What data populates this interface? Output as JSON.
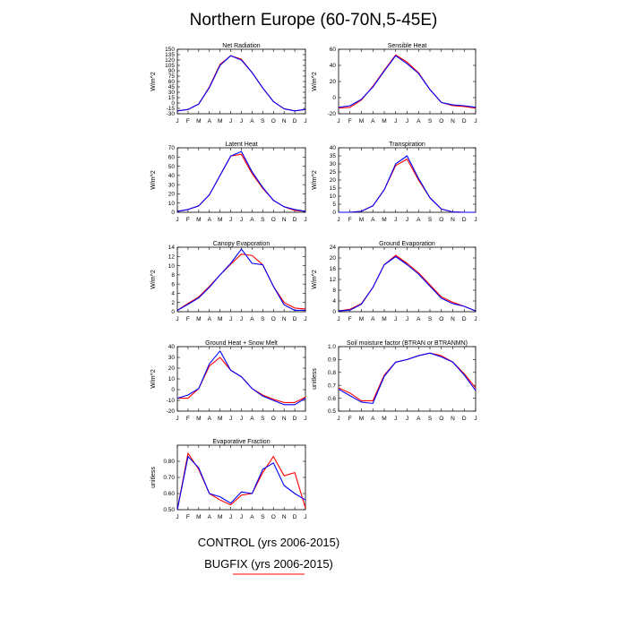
{
  "figure": {
    "title": "Northern Europe (60-70N,5-45E)",
    "legend": {
      "items": [
        {
          "label": "CONTROL (yrs 2006-2015)",
          "color": "#0000ff",
          "show_line": false
        },
        {
          "label": "BUGFIX (yrs 2006-2015)",
          "color": "#ff0000",
          "show_line": true
        }
      ]
    }
  },
  "chart_data": [
    {
      "type": "line",
      "title": "Net Radiation",
      "ylabel": "W/m^2",
      "categories": [
        "J",
        "F",
        "M",
        "A",
        "M",
        "J",
        "J",
        "A",
        "S",
        "O",
        "N",
        "D",
        "J"
      ],
      "ylim": [
        -30,
        150
      ],
      "yticks": [
        -30,
        -15,
        0,
        15,
        30,
        45,
        60,
        75,
        90,
        105,
        120,
        135,
        150
      ],
      "series": [
        {
          "color": "#ff0000",
          "values": [
            -22,
            -18,
            -3,
            45,
            108,
            132,
            122,
            85,
            42,
            4,
            -16,
            -22,
            -18
          ]
        },
        {
          "color": "#0000ff",
          "values": [
            -22,
            -18,
            -3,
            43,
            105,
            132,
            120,
            85,
            42,
            4,
            -16,
            -22,
            -18
          ]
        }
      ]
    },
    {
      "type": "line",
      "title": "Sensible Heat",
      "ylabel": "W/m^2",
      "categories": [
        "J",
        "F",
        "M",
        "A",
        "M",
        "J",
        "J",
        "A",
        "S",
        "O",
        "N",
        "D",
        "J"
      ],
      "ylim": [
        -20,
        60
      ],
      "yticks": [
        -20,
        0,
        20,
        40,
        60
      ],
      "series": [
        {
          "color": "#ff0000",
          "values": [
            -13,
            -12,
            -3,
            14,
            34,
            53,
            44,
            31,
            10,
            -6,
            -10,
            -11,
            -13
          ]
        },
        {
          "color": "#0000ff",
          "values": [
            -12,
            -10,
            -2,
            13,
            33,
            52,
            42,
            30,
            10,
            -6,
            -9,
            -10,
            -12
          ]
        }
      ]
    },
    {
      "type": "line",
      "title": "Latent Heat",
      "ylabel": "W/m^2",
      "categories": [
        "J",
        "F",
        "M",
        "A",
        "M",
        "J",
        "J",
        "A",
        "S",
        "O",
        "N",
        "D",
        "J"
      ],
      "ylim": [
        0,
        70
      ],
      "yticks": [
        0,
        10,
        20,
        30,
        40,
        50,
        60,
        70
      ],
      "series": [
        {
          "color": "#ff0000",
          "values": [
            1,
            3,
            7,
            19,
            40,
            61,
            63,
            42,
            26,
            13,
            6,
            2,
            1
          ]
        },
        {
          "color": "#0000ff",
          "values": [
            1,
            3,
            7,
            19,
            40,
            61,
            66,
            44,
            27,
            13,
            6,
            3,
            1
          ]
        }
      ]
    },
    {
      "type": "line",
      "title": "Transpiration",
      "ylabel": "W/m^2",
      "categories": [
        "J",
        "F",
        "M",
        "A",
        "M",
        "J",
        "J",
        "A",
        "S",
        "O",
        "N",
        "D",
        "J"
      ],
      "ylim": [
        0,
        40
      ],
      "yticks": [
        0,
        5,
        10,
        15,
        20,
        25,
        30,
        35,
        40
      ],
      "series": [
        {
          "color": "#ff0000",
          "values": [
            0,
            0,
            0.6,
            4,
            14,
            29,
            33,
            20,
            9,
            2,
            0.2,
            0,
            0
          ]
        },
        {
          "color": "#0000ff",
          "values": [
            0,
            0,
            0.6,
            4,
            14,
            30,
            35,
            21,
            9,
            2,
            0.2,
            0,
            0
          ]
        }
      ]
    },
    {
      "type": "line",
      "title": "Canopy Evaporation",
      "ylabel": "W/m^2",
      "categories": [
        "J",
        "F",
        "M",
        "A",
        "M",
        "J",
        "J",
        "A",
        "S",
        "O",
        "N",
        "D",
        "J"
      ],
      "ylim": [
        0,
        14
      ],
      "yticks": [
        0,
        2,
        4,
        6,
        8,
        10,
        12,
        14
      ],
      "series": [
        {
          "color": "#ff0000",
          "values": [
            0.3,
            1.8,
            3.2,
            5.5,
            8,
            10.3,
            12.5,
            12.2,
            10.2,
            5.5,
            2,
            0.8,
            0.6
          ]
        },
        {
          "color": "#0000ff",
          "values": [
            0.3,
            1.6,
            3.0,
            5.3,
            8,
            10.5,
            13.6,
            10.5,
            10.2,
            5.5,
            1.5,
            0.3,
            0.3
          ]
        }
      ]
    },
    {
      "type": "line",
      "title": "Ground Evaporation",
      "ylabel": "W/m^2",
      "categories": [
        "J",
        "F",
        "M",
        "A",
        "M",
        "J",
        "J",
        "A",
        "S",
        "O",
        "N",
        "D",
        "J"
      ],
      "ylim": [
        0,
        24
      ],
      "yticks": [
        0,
        4,
        8,
        12,
        16,
        20,
        24
      ],
      "series": [
        {
          "color": "#ff0000",
          "values": [
            0.3,
            0.9,
            3,
            9,
            17.5,
            21,
            18,
            14.5,
            10,
            5.5,
            3.5,
            2,
            0.3
          ]
        },
        {
          "color": "#0000ff",
          "values": [
            0.3,
            0.6,
            2.8,
            9,
            17.5,
            20.5,
            17.5,
            14,
            9.5,
            5,
            3,
            2,
            0.3
          ]
        }
      ]
    },
    {
      "type": "line",
      "title": "Ground Heat + Snow Melt",
      "ylabel": "W/m^2",
      "categories": [
        "J",
        "F",
        "M",
        "A",
        "M",
        "J",
        "J",
        "A",
        "S",
        "O",
        "N",
        "D",
        "J"
      ],
      "ylim": [
        -20,
        40
      ],
      "yticks": [
        -20,
        -10,
        0,
        10,
        20,
        30,
        40
      ],
      "series": [
        {
          "color": "#ff0000",
          "values": [
            -8,
            -8,
            1,
            22,
            30,
            18,
            12,
            1,
            -5,
            -9,
            -12,
            -12,
            -7
          ]
        },
        {
          "color": "#0000ff",
          "values": [
            -8,
            -5,
            1,
            24,
            36,
            18,
            12,
            1,
            -6,
            -10,
            -14,
            -14,
            -8
          ]
        }
      ]
    },
    {
      "type": "line",
      "title": "Soil moisture factor (BTRAN or BTRANMN)",
      "ylabel": "unitless",
      "categories": [
        "J",
        "F",
        "M",
        "A",
        "M",
        "J",
        "J",
        "A",
        "S",
        "O",
        "N",
        "D",
        "J"
      ],
      "ylim": [
        0.5,
        1.0
      ],
      "yticks": [
        "0.5",
        "0.6",
        "0.7",
        "0.8",
        "0.9",
        "1.0"
      ],
      "series": [
        {
          "color": "#ff0000",
          "values": [
            0.68,
            0.64,
            0.58,
            0.58,
            0.78,
            0.88,
            0.9,
            0.93,
            0.95,
            0.93,
            0.88,
            0.79,
            0.68
          ]
        },
        {
          "color": "#0000ff",
          "values": [
            0.67,
            0.62,
            0.57,
            0.56,
            0.77,
            0.88,
            0.9,
            0.93,
            0.95,
            0.92,
            0.88,
            0.78,
            0.66
          ]
        }
      ]
    },
    {
      "type": "line",
      "title": "Evaporative Fraction",
      "ylabel": "unitless",
      "categories": [
        "J",
        "F",
        "M",
        "A",
        "M",
        "J",
        "J",
        "A",
        "S",
        "O",
        "N",
        "D",
        "J"
      ],
      "ylim": [
        0.5,
        0.9
      ],
      "yticks": [
        "0.50",
        "0.60",
        "0.70",
        "0.80"
      ],
      "series": [
        {
          "color": "#ff0000",
          "values": [
            0.5,
            0.85,
            0.75,
            0.6,
            0.56,
            0.53,
            0.59,
            0.6,
            0.73,
            0.83,
            0.71,
            0.73,
            0.51
          ]
        },
        {
          "color": "#0000ff",
          "values": [
            0.5,
            0.83,
            0.76,
            0.6,
            0.58,
            0.54,
            0.61,
            0.6,
            0.75,
            0.79,
            0.65,
            0.6,
            0.56
          ]
        }
      ]
    }
  ]
}
